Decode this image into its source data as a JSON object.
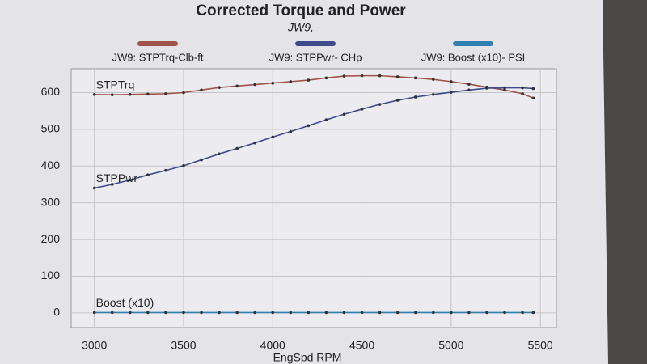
{
  "chart_data": {
    "type": "line",
    "title": "Corrected Torque and Power",
    "subtitle": "JW9,",
    "x_label": "EngSpd RPM",
    "x": [
      3000,
      3100,
      3200,
      3300,
      3400,
      3500,
      3600,
      3700,
      3800,
      3900,
      4000,
      4100,
      4200,
      4300,
      4400,
      4500,
      4600,
      4700,
      4800,
      4900,
      5000,
      5100,
      5200,
      5300,
      5400,
      5460
    ],
    "series": [
      {
        "name": "JW9: STPTrq-Clb-ft",
        "label": "STPTrq",
        "color": "#a0524a",
        "values": [
          595,
          594,
          595,
          596,
          597,
          600,
          607,
          614,
          618,
          622,
          626,
          630,
          634,
          640,
          645,
          646,
          646,
          643,
          640,
          636,
          630,
          623,
          615,
          607,
          597,
          585
        ]
      },
      {
        "name": "JW9: STPPwr- CHp",
        "label": "STPPwr",
        "color": "#3f4a8a",
        "values": [
          340,
          350,
          362,
          376,
          388,
          401,
          417,
          433,
          448,
          463,
          479,
          494,
          510,
          526,
          541,
          555,
          568,
          579,
          588,
          595,
          601,
          607,
          612,
          613,
          613,
          611
        ]
      },
      {
        "name": "JW9: Boost (x10)- PSI",
        "label": "Boost (x10)",
        "color": "#2f7fb0",
        "values": [
          1,
          1,
          1,
          1,
          1,
          1,
          1,
          1,
          1,
          1,
          1,
          1,
          1,
          1,
          1,
          1,
          1,
          1,
          1,
          1,
          1,
          1,
          1,
          1,
          1,
          1
        ]
      }
    ],
    "xlim": [
      2870,
      5590
    ],
    "xticks": [
      3000,
      3500,
      4000,
      4500,
      5000,
      5500
    ],
    "ylim": [
      -40,
      665
    ],
    "yticks": [
      0,
      100,
      200,
      300,
      400,
      500,
      600
    ],
    "grid": true,
    "legend": "top"
  }
}
